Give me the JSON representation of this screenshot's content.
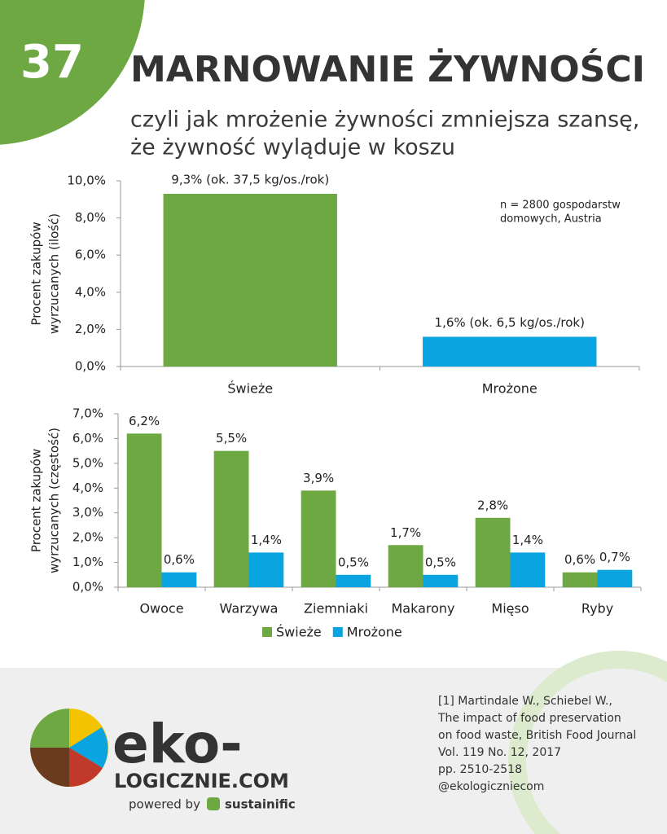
{
  "header": {
    "number": "37",
    "title": "MARNOWANIE ŻYWNOŚCI",
    "subtitle_lines": [
      "czyli jak mrożenie żywności zmniejsza szansę,",
      "że żywność wyląduje w koszu"
    ]
  },
  "chart_data": [
    {
      "type": "bar",
      "ylabel_lines": [
        "Procent zakupów",
        "wyrzucanych (ilość)"
      ],
      "categories": [
        "Świeże",
        "Mrożone"
      ],
      "values": [
        9.3,
        1.6
      ],
      "value_labels": [
        "9,3% (ok. 37,5 kg/os./rok)",
        "1,6% (ok. 6,5 kg/os./rok)"
      ],
      "colors": [
        "#6ea843",
        "#0aa5e0"
      ],
      "ylim": [
        0,
        10
      ],
      "yticks": [
        {
          "value": 0,
          "label": "0,0%"
        },
        {
          "value": 2,
          "label": "2,0%"
        },
        {
          "value": 4,
          "label": "4,0%"
        },
        {
          "value": 6,
          "label": "6,0%"
        },
        {
          "value": 8,
          "label": "8,0%"
        },
        {
          "value": 10,
          "label": "10,0%"
        }
      ],
      "annotation_lines": [
        "n = 2800 gospodarstw",
        "domowych, Austria"
      ]
    },
    {
      "type": "grouped_bar",
      "ylabel_lines": [
        "Procent zakupów",
        "wyrzucanych (częstość)"
      ],
      "categories": [
        "Owoce",
        "Warzywa",
        "Ziemniaki",
        "Makarony",
        "Mięso",
        "Ryby"
      ],
      "series": [
        {
          "name": "Świeże",
          "color": "#6ea843",
          "values": [
            6.2,
            5.5,
            3.9,
            1.7,
            2.8,
            0.6
          ],
          "value_labels": [
            "6,2%",
            "5,5%",
            "3,9%",
            "1,7%",
            "2,8%",
            "0,6%"
          ]
        },
        {
          "name": "Mrożone",
          "color": "#0aa5e0",
          "values": [
            0.6,
            1.4,
            0.5,
            0.5,
            1.4,
            0.7
          ],
          "value_labels": [
            "0,6%",
            "1,4%",
            "0,5%",
            "0,5%",
            "1,4%",
            "0,7%"
          ]
        }
      ],
      "ylim": [
        0,
        7
      ],
      "yticks": [
        {
          "value": 0,
          "label": "0,0%"
        },
        {
          "value": 1,
          "label": "1,0%"
        },
        {
          "value": 2,
          "label": "2,0%"
        },
        {
          "value": 3,
          "label": "3,0%"
        },
        {
          "value": 4,
          "label": "4,0%"
        },
        {
          "value": 5,
          "label": "5,0%"
        },
        {
          "value": 6,
          "label": "6,0%"
        },
        {
          "value": 7,
          "label": "7,0%"
        }
      ],
      "legend": "bottom"
    }
  ],
  "footer": {
    "reference_lines": [
      "[1] Martindale W., Schiebel W.,",
      "The impact of food preservation",
      "on food waste, British Food Journal",
      "Vol. 119 No. 12, 2017",
      "pp. 2510-2518",
      "@ekologiczniecom"
    ],
    "logo_line1": "eko-",
    "logo_line2": "LOGICZNIE.COM",
    "powered": "powered by",
    "brand": "sustainific"
  }
}
